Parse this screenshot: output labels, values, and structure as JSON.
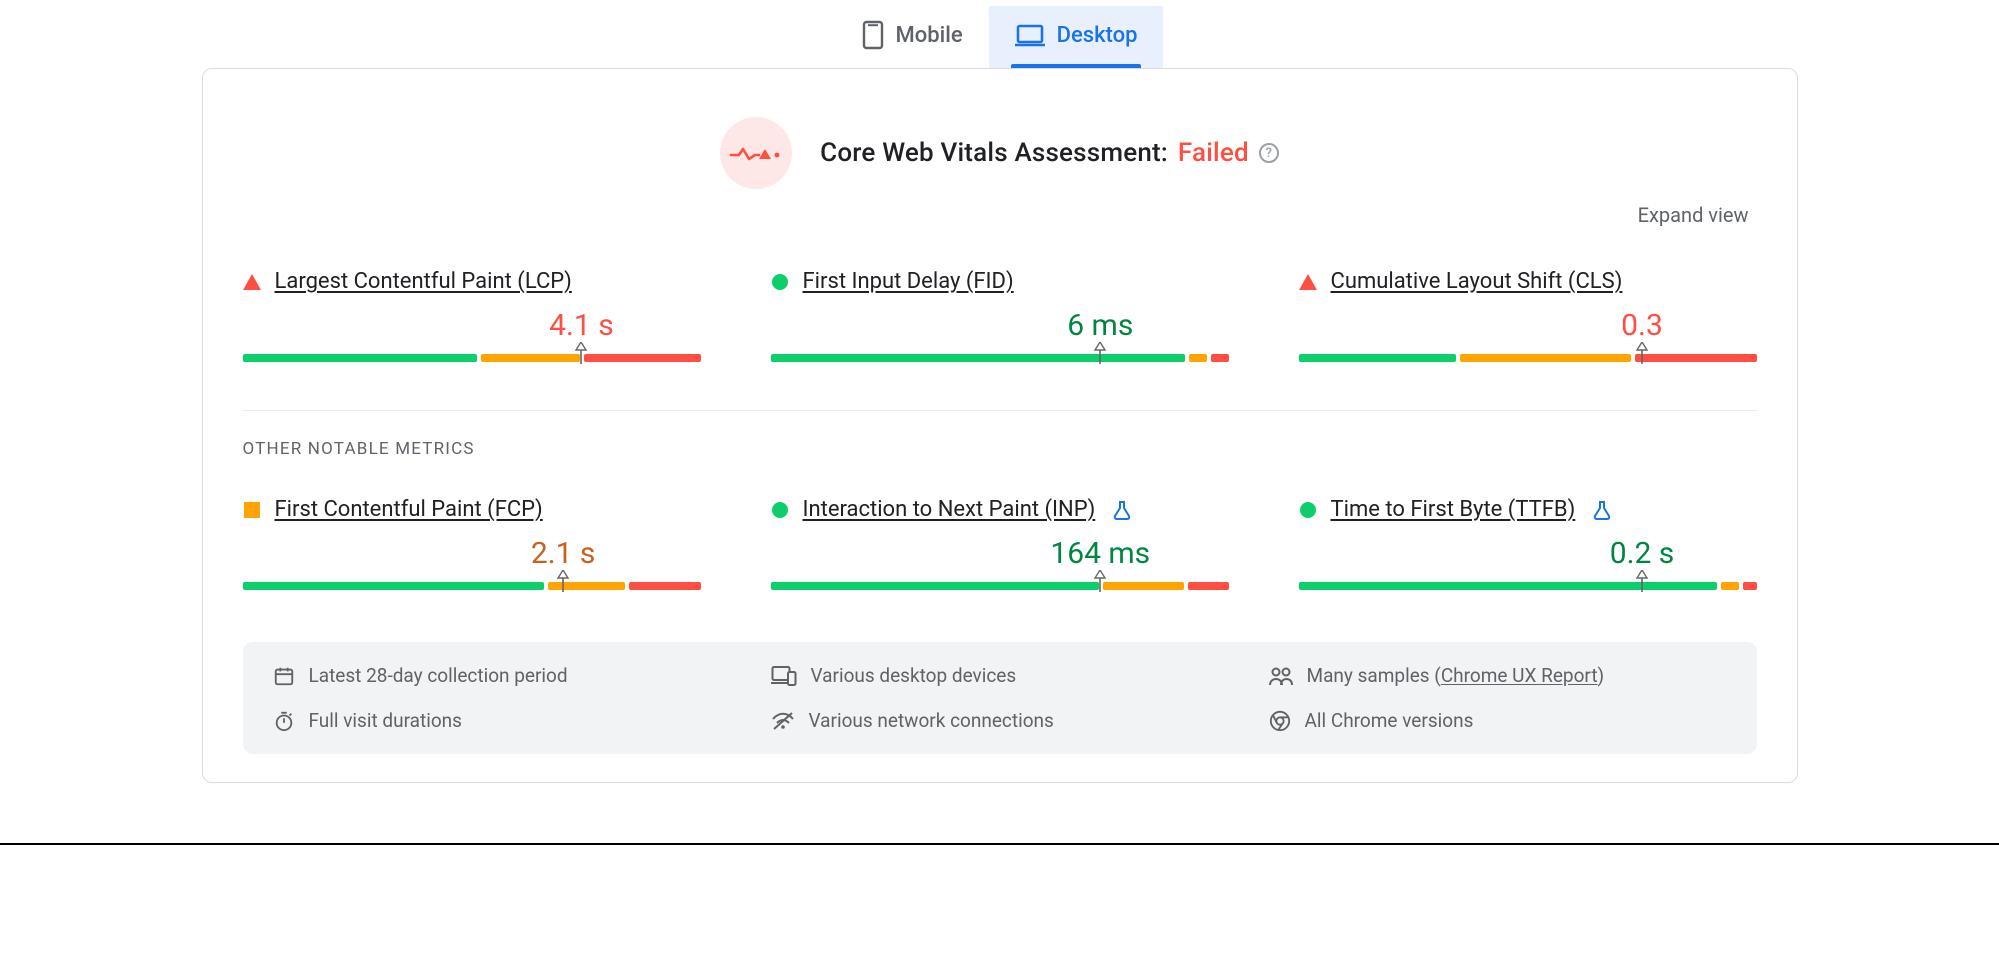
{
  "colors": {
    "good": "#0cce6b",
    "avg": "#ffa400",
    "poor": "#ff4e42",
    "text_poor": "#ff4e42",
    "text_avg": "#c7621e",
    "text_good": "#018642",
    "tab_active_bg": "#e8f0fe",
    "tab_active_fg": "#1a73e8",
    "muted": "#5f6368",
    "badge_bg": "#fde7e7",
    "flask": "#1a73e8"
  },
  "tabs": {
    "mobile": {
      "label": "Mobile",
      "active": false
    },
    "desktop": {
      "label": "Desktop",
      "active": true
    }
  },
  "assessment": {
    "prefix": "Core Web Vitals Assessment:",
    "status": "Failed",
    "status_color": "#ff4e42"
  },
  "expand_label": "Expand view",
  "section_label": "Other Notable Metrics",
  "metrics": {
    "lcp": {
      "name": "Largest Contentful Paint (LCP)",
      "status": "poor",
      "value_text": "4.1 s",
      "value_color": "#ff4e42",
      "segments": [
        {
          "pct": 52,
          "color": "#0cce6b"
        },
        {
          "pct": 22,
          "color": "#ffa400"
        },
        {
          "pct": 26,
          "color": "#ff4e42"
        }
      ],
      "marker_pct": 74,
      "experimental": false
    },
    "fid": {
      "name": "First Input Delay (FID)",
      "status": "good",
      "value_text": "6 ms",
      "value_color": "#018642",
      "segments": [
        {
          "pct": 92,
          "color": "#0cce6b"
        },
        {
          "pct": 4,
          "color": "#ffa400"
        },
        {
          "pct": 4,
          "color": "#ff4e42"
        }
      ],
      "marker_pct": 72,
      "experimental": false
    },
    "cls": {
      "name": "Cumulative Layout Shift (CLS)",
      "status": "poor",
      "value_text": "0.3",
      "value_color": "#ff4e42",
      "segments": [
        {
          "pct": 35,
          "color": "#0cce6b"
        },
        {
          "pct": 38,
          "color": "#ffa400"
        },
        {
          "pct": 27,
          "color": "#ff4e42"
        }
      ],
      "marker_pct": 75,
      "experimental": false
    },
    "fcp": {
      "name": "First Contentful Paint (FCP)",
      "status": "avg",
      "value_text": "2.1 s",
      "value_color": "#c7621e",
      "segments": [
        {
          "pct": 67,
          "color": "#0cce6b"
        },
        {
          "pct": 17,
          "color": "#ffa400"
        },
        {
          "pct": 16,
          "color": "#ff4e42"
        }
      ],
      "marker_pct": 70,
      "experimental": false
    },
    "inp": {
      "name": "Interaction to Next Paint (INP)",
      "status": "good",
      "value_text": "164 ms",
      "value_color": "#018642",
      "segments": [
        {
          "pct": 73,
          "color": "#0cce6b"
        },
        {
          "pct": 18,
          "color": "#ffa400"
        },
        {
          "pct": 9,
          "color": "#ff4e42"
        }
      ],
      "marker_pct": 72,
      "experimental": true
    },
    "ttfb": {
      "name": "Time to First Byte (TTFB)",
      "status": "good",
      "value_text": "0.2 s",
      "value_color": "#018642",
      "segments": [
        {
          "pct": 93,
          "color": "#0cce6b"
        },
        {
          "pct": 4,
          "color": "#ffa400"
        },
        {
          "pct": 3,
          "color": "#ff4e42"
        }
      ],
      "marker_pct": 75,
      "experimental": true
    }
  },
  "footer": {
    "period": "Latest 28-day collection period",
    "devices": "Various desktop devices",
    "samples_pre": "Many samples (",
    "samples_link": "Chrome UX Report",
    "samples_post": ")",
    "duration": "Full visit durations",
    "network": "Various network connections",
    "chrome": "All Chrome versions"
  }
}
